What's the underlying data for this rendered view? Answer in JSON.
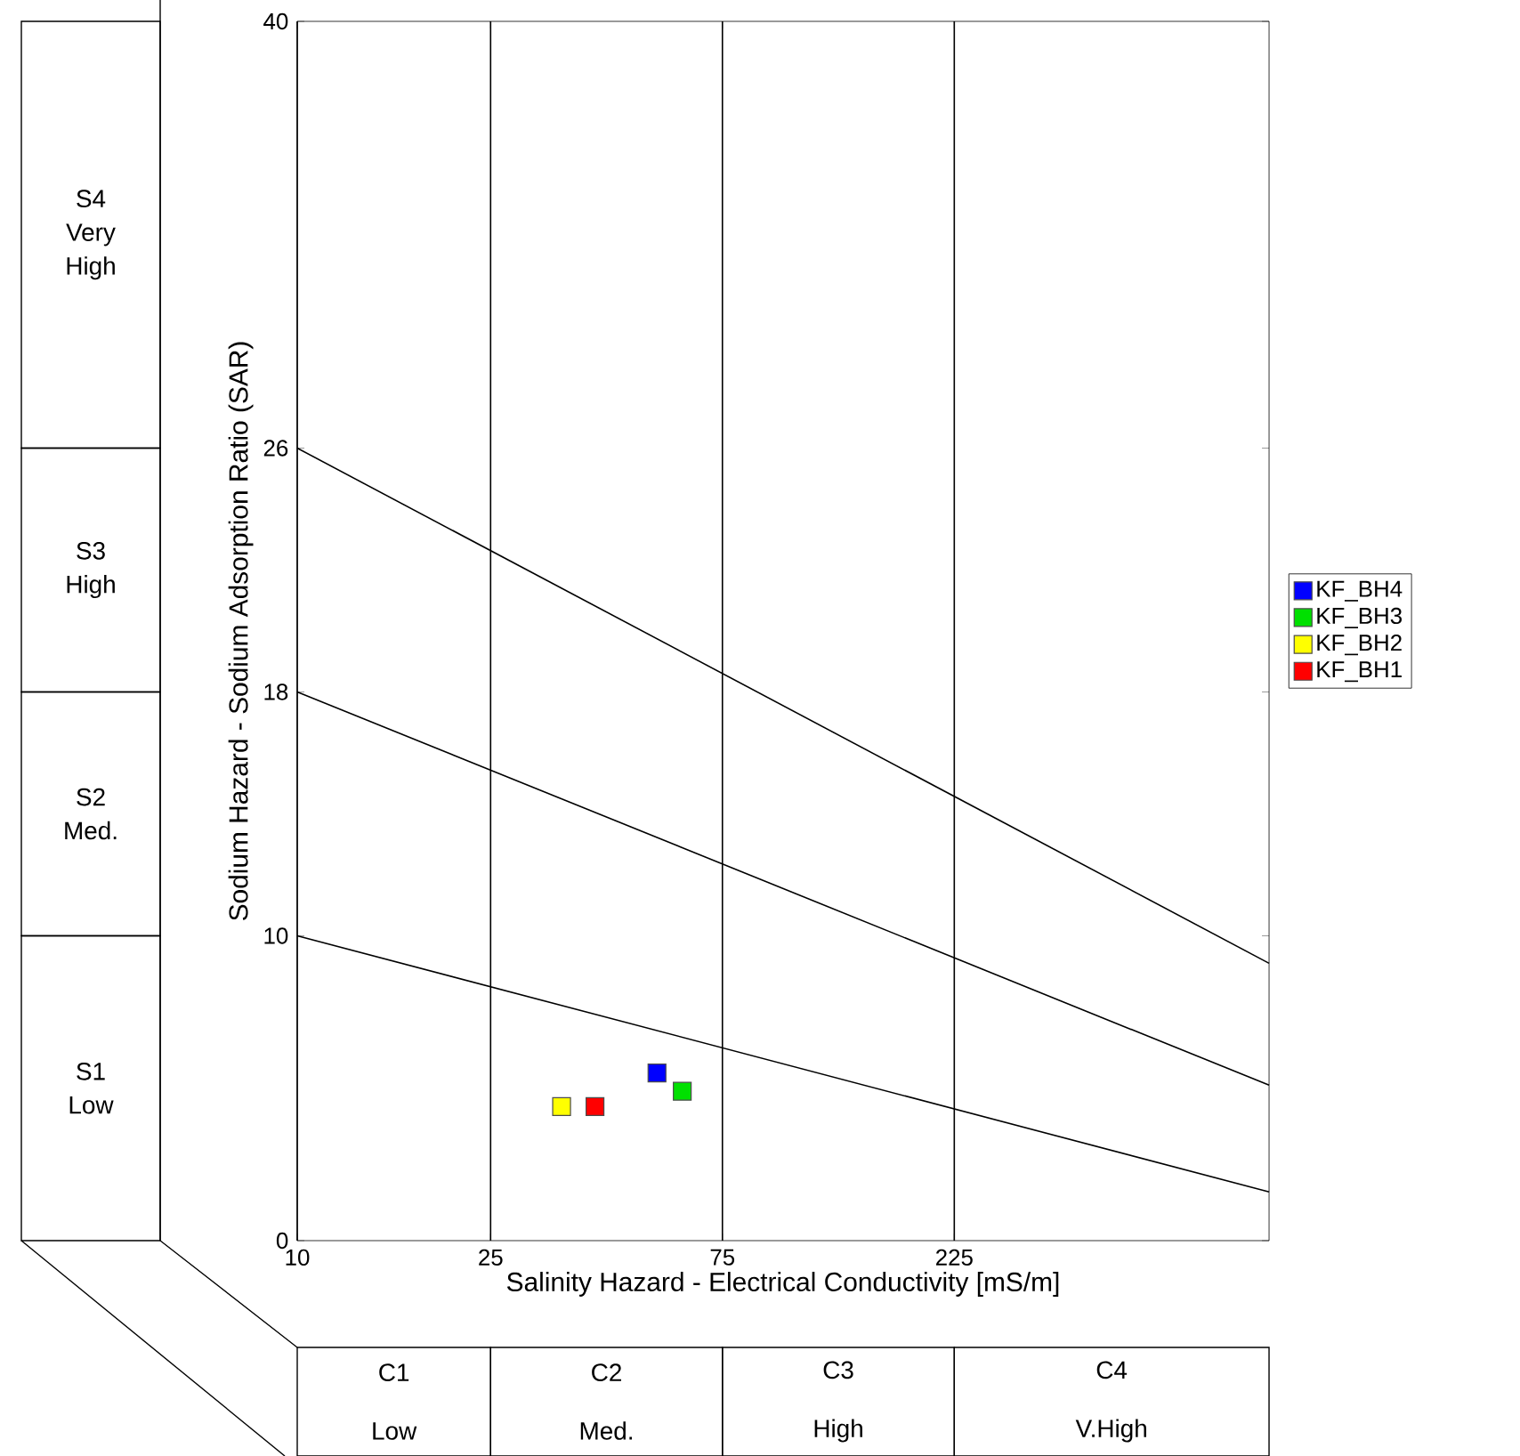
{
  "chart_data": {
    "type": "scatter",
    "xlabel": "Salinity Hazard - Electrical Conductivity [mS/m]",
    "ylabel": "Sodium Hazard - Sodium Adsorption Ratio (SAR)",
    "log": "x",
    "xlim": [
      10,
      1000
    ],
    "ylim": [
      0,
      40
    ],
    "xticks": [
      10,
      25,
      75,
      225
    ],
    "yticks": [
      0,
      10,
      18,
      26,
      40
    ],
    "grid": "x",
    "legend": "right",
    "series": [
      {
        "type": "line",
        "color": "#000000",
        "x": [
          10,
          1000
        ],
        "values": [
          26,
          9.1
        ]
      },
      {
        "type": "line",
        "color": "#000000",
        "x": [
          10,
          1000
        ],
        "values": [
          18,
          5.1
        ]
      },
      {
        "type": "line",
        "color": "#000000",
        "x": [
          10,
          1000
        ],
        "values": [
          10,
          1.6
        ]
      },
      {
        "name": "KF_BH4",
        "color": "#0000ff",
        "marker": "square",
        "x": [
          55
        ],
        "values": [
          5.5
        ]
      },
      {
        "name": "KF_BH3",
        "color": "#00e000",
        "marker": "square",
        "x": [
          62
        ],
        "values": [
          4.9
        ]
      },
      {
        "name": "KF_BH2",
        "color": "#ffff00",
        "marker": "square",
        "x": [
          35
        ],
        "values": [
          4.4
        ]
      },
      {
        "name": "KF_BH1",
        "color": "#ff0000",
        "marker": "square",
        "x": [
          41
        ],
        "values": [
          4.4
        ]
      }
    ],
    "annotations": [
      "S4 Very High",
      "S3 High",
      "S2 Med.",
      "S1 Low",
      "C1 Low",
      "C2 Med.",
      "C3 High",
      "C4 V.High"
    ]
  }
}
